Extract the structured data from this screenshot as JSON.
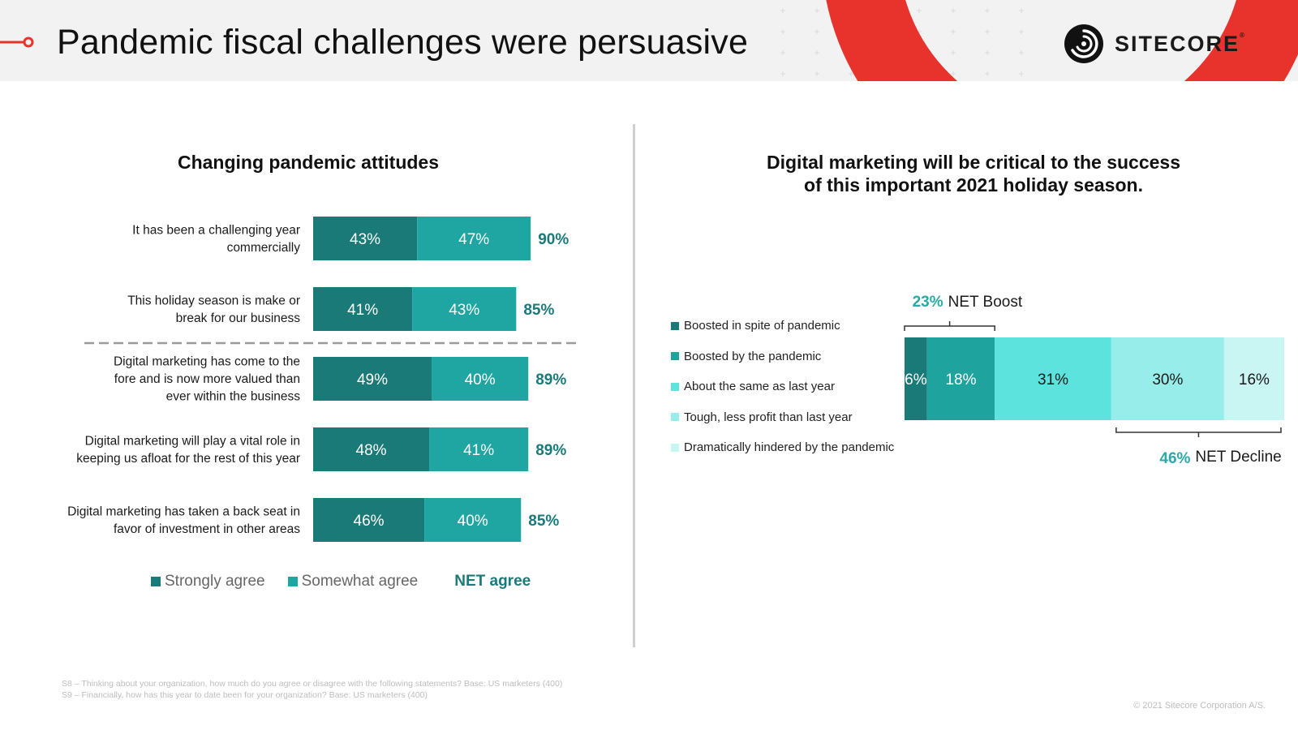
{
  "header": {
    "title": "Pandemic fiscal challenges were persuasive",
    "brand": "SITECORE",
    "brand_mark": "®"
  },
  "colors": {
    "strong": "#1a7a78",
    "somewhat": "#20a6a2",
    "net": "#1a7a7a",
    "accent_red": "#e8322c",
    "boost_accent": "#2aa9a6",
    "segments": [
      "#1a7a78",
      "#1fa39f",
      "#5ce3dd",
      "#97ede9",
      "#c9f5f2"
    ]
  },
  "left": {
    "title": "Changing pandemic attitudes",
    "legend": {
      "strongly": "Strongly agree",
      "somewhat": "Somewhat agree",
      "net": "NET agree"
    }
  },
  "right": {
    "title_line1": "Digital marketing will be critical to the success",
    "title_line2": "of this important 2021 holiday season.",
    "legend": [
      "Boosted in spite of pandemic",
      "Boosted by the pandemic",
      "About the same as last year",
      "Tough, less profit than last year",
      "Dramatically hindered by the pandemic"
    ],
    "net_boost": {
      "value": "23%",
      "label": "NET Boost"
    },
    "net_decline": {
      "value": "46%",
      "label": "NET Decline"
    }
  },
  "chart_data": [
    {
      "type": "bar",
      "orientation": "horizontal",
      "stacked": true,
      "title": "Changing pandemic attitudes",
      "categories": [
        [
          "It has been a challenging year",
          "commercially"
        ],
        [
          "This holiday season is make or",
          "break for our business"
        ],
        [
          "Digital marketing has come to the",
          "fore and is now more valued than",
          "ever within the business"
        ],
        [
          "Digital marketing will play a vital role in",
          "keeping us afloat for the rest of this year"
        ],
        [
          "Digital marketing has taken a back seat in",
          "favor of investment in other areas"
        ]
      ],
      "series": [
        {
          "name": "Strongly agree",
          "values": [
            43,
            41,
            49,
            48,
            46
          ]
        },
        {
          "name": "Somewhat agree",
          "values": [
            47,
            43,
            40,
            41,
            40
          ]
        }
      ],
      "net_agree": [
        90,
        85,
        89,
        89,
        85
      ],
      "unit": "%",
      "divider_after_index": 1
    },
    {
      "type": "bar",
      "orientation": "horizontal",
      "stacked": true,
      "title": "Digital marketing will be critical to the success of this important 2021 holiday season.",
      "series": [
        {
          "name": "Boosted in spite of pandemic",
          "value": 6
        },
        {
          "name": "Boosted by the pandemic",
          "value": 18
        },
        {
          "name": "About the same as last year",
          "value": 31
        },
        {
          "name": "Tough, less profit than last year",
          "value": 30
        },
        {
          "name": "Dramatically hindered by the pandemic",
          "value": 16
        }
      ],
      "unit": "%"
    }
  ],
  "footnotes": [
    "S8 – Thinking about your organization, how much do you agree or disagree with the following statements? Base: US marketers (400)",
    "S9 – Financially, how has this year to date been for your organization? Base: US marketers (400)"
  ],
  "copyright": "© 2021 Sitecore Corporation A/S."
}
